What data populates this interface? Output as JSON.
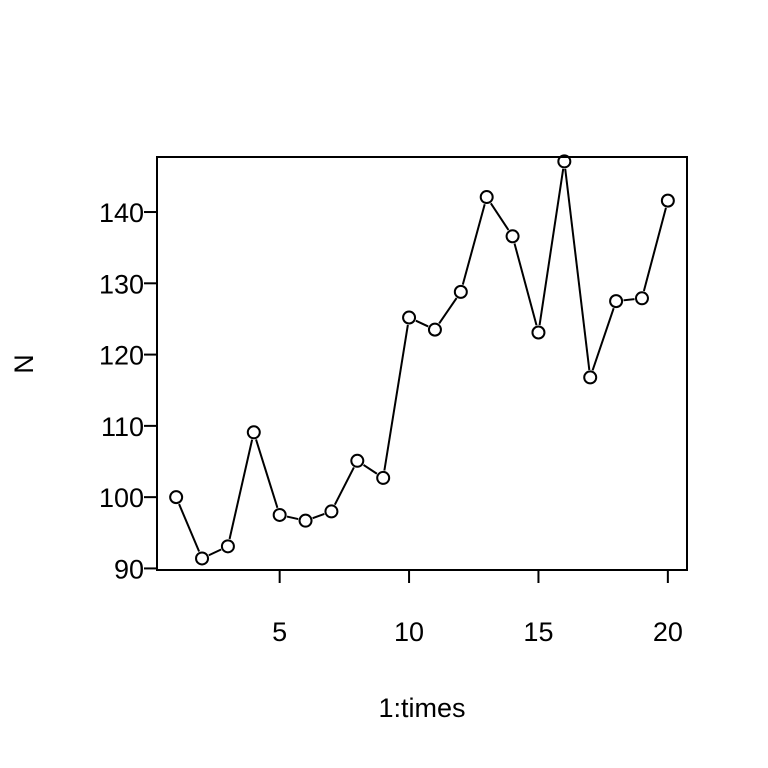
{
  "chart_data": {
    "type": "line",
    "markers": "open-circle",
    "x": [
      1,
      2,
      3,
      4,
      5,
      6,
      7,
      8,
      9,
      10,
      11,
      12,
      13,
      14,
      15,
      16,
      17,
      18,
      19,
      20
    ],
    "series": [
      {
        "values": [
          100,
          91.4,
          93.1,
          109.1,
          97.5,
          96.7,
          98.0,
          105.1,
          102.7,
          125.2,
          123.5,
          128.8,
          142.1,
          136.6,
          123.1,
          147.1,
          116.8,
          127.5,
          127.9,
          141.6
        ]
      }
    ],
    "xlabel": "1:times",
    "ylabel": "N",
    "xlim": [
      0.26,
      20.74
    ],
    "ylim": [
      89.78,
      147.72
    ],
    "xticks": [
      "5",
      "10",
      "15",
      "20"
    ],
    "yticks": [
      "90",
      "100",
      "110",
      "120",
      "130",
      "140"
    ],
    "grid": false,
    "colors": {
      "line": "#000000",
      "marker": "#000000",
      "frame": "#000000"
    }
  }
}
